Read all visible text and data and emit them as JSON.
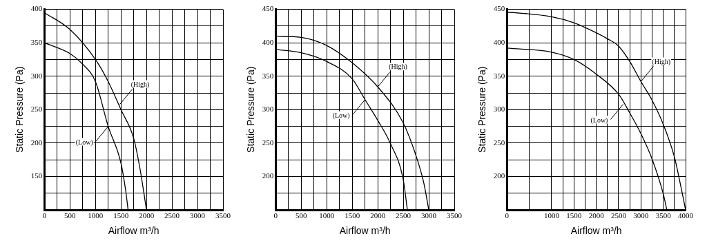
{
  "chart_data": [
    {
      "type": "line",
      "xlabel": "Airflow m³/h",
      "ylabel": "Static Pressure (Pa)",
      "grid": true,
      "marker": "none",
      "line_style": "solid",
      "xlim": [
        0,
        3500
      ],
      "ylim": [
        100,
        400
      ],
      "xticks": [
        0,
        {
          "value": 250,
          "label": null
        },
        500,
        {
          "value": 750,
          "label": null
        },
        1000,
        {
          "value": 1250,
          "label": null
        },
        1500,
        {
          "value": 1750,
          "label": null
        },
        2000,
        {
          "value": 2250,
          "label": null
        },
        2500,
        {
          "value": 2750,
          "label": null
        },
        3000,
        {
          "value": 3250,
          "label": null
        },
        3500
      ],
      "yticks": [
        {
          "value": 100,
          "label": null
        },
        {
          "value": 125,
          "label": null
        },
        150,
        {
          "value": 175,
          "label": null
        },
        200,
        {
          "value": 225,
          "label": null
        },
        250,
        {
          "value": 275,
          "label": null
        },
        300,
        {
          "value": 325,
          "label": null
        },
        350,
        {
          "value": 375,
          "label": null
        },
        400
      ],
      "series": [
        {
          "color": "#000000",
          "x": [
            0,
            500,
            1000,
            1250,
            1500,
            1750,
            1875,
            1950,
            2000
          ],
          "values": [
            395,
            370,
            325,
            292,
            250,
            207,
            161,
            125,
            100
          ]
        },
        {
          "color": "#000000",
          "x": [
            0,
            500,
            750,
            1000,
            1250,
            1500,
            1600,
            1640
          ],
          "values": [
            350,
            334,
            318,
            292,
            225,
            170,
            125,
            100
          ]
        }
      ],
      "annotations": [
        {
          "text": "(High)",
          "x": 1480,
          "y": 258
        },
        {
          "text": "(Low)",
          "x": 1250,
          "y": 225
        }
      ]
    },
    {
      "type": "line",
      "xlabel": "Airflow m³/h",
      "ylabel": "Static Pressure (Pa)",
      "grid": true,
      "marker": "none",
      "line_style": "solid",
      "xlim": [
        0,
        3500
      ],
      "ylim": [
        150,
        450
      ],
      "xticks": [
        0,
        {
          "value": 250,
          "label": null
        },
        500,
        {
          "value": 750,
          "label": null
        },
        1000,
        {
          "value": 1250,
          "label": null
        },
        1500,
        {
          "value": 1750,
          "label": null
        },
        2000,
        {
          "value": 2250,
          "label": null
        },
        2500,
        {
          "value": 2750,
          "label": null
        },
        3000,
        {
          "value": 3250,
          "label": null
        },
        3500
      ],
      "yticks": [
        {
          "value": 150,
          "label": null
        },
        {
          "value": 175,
          "label": null
        },
        200,
        {
          "value": 225,
          "label": null
        },
        250,
        {
          "value": 275,
          "label": null
        },
        300,
        {
          "value": 325,
          "label": null
        },
        350,
        {
          "value": 375,
          "label": null
        },
        400,
        {
          "value": 425,
          "label": null
        },
        450
      ],
      "series": [
        {
          "color": "#000000",
          "x": [
            0,
            500,
            1000,
            1500,
            2000,
            2500,
            2750,
            2900,
            3000
          ],
          "values": [
            410,
            408,
            396,
            370,
            334,
            280,
            231,
            191,
            150
          ]
        },
        {
          "color": "#000000",
          "x": [
            0,
            500,
            1000,
            1500,
            1750,
            2000,
            2250,
            2500,
            2580
          ],
          "values": [
            390,
            385,
            372,
            346,
            315,
            284,
            249,
            195,
            150
          ]
        }
      ],
      "annotations": [
        {
          "text": "(High)",
          "x": 2000,
          "y": 334
        },
        {
          "text": "(Low)",
          "x": 1750,
          "y": 315
        }
      ]
    },
    {
      "type": "line",
      "xlabel": "Airflow m³/h",
      "ylabel": "Static Pressure (Pa)",
      "grid": true,
      "marker": "none",
      "line_style": "solid",
      "xlim": [
        0,
        4000
      ],
      "ylim": [
        150,
        450
      ],
      "xticks": [
        0,
        {
          "value": 500,
          "label": null
        },
        1000,
        {
          "value": 1250,
          "label": null
        },
        1500,
        {
          "value": 1750,
          "label": null
        },
        2000,
        {
          "value": 2250,
          "label": null
        },
        2500,
        {
          "value": 2750,
          "label": null
        },
        3000,
        {
          "value": 3250,
          "label": null
        },
        3500,
        {
          "value": 3750,
          "label": null
        },
        4000
      ],
      "yticks": [
        {
          "value": 150,
          "label": null
        },
        {
          "value": 175,
          "label": null
        },
        200,
        {
          "value": 225,
          "label": null
        },
        250,
        {
          "value": 275,
          "label": null
        },
        300,
        {
          "value": 325,
          "label": null
        },
        350,
        {
          "value": 375,
          "label": null
        },
        400,
        {
          "value": 425,
          "label": null
        },
        450
      ],
      "series": [
        {
          "color": "#000000",
          "x": [
            0,
            1000,
            1500,
            2000,
            2250,
            2500,
            2750,
            3000,
            3250,
            3500,
            3750,
            3900,
            4000
          ],
          "values": [
            446,
            439,
            430,
            415,
            406,
            395,
            372,
            342,
            314,
            278,
            229,
            183,
            150
          ]
        },
        {
          "color": "#000000",
          "x": [
            0,
            1000,
            1500,
            2000,
            2500,
            2750,
            3000,
            3250,
            3500,
            3580
          ],
          "values": [
            392,
            386,
            375,
            353,
            323,
            295,
            264,
            226,
            174,
            150
          ]
        }
      ],
      "annotations": [
        {
          "text": "(High)",
          "x": 3000,
          "y": 342
        },
        {
          "text": "(Low)",
          "x": 2600,
          "y": 308
        }
      ]
    }
  ]
}
